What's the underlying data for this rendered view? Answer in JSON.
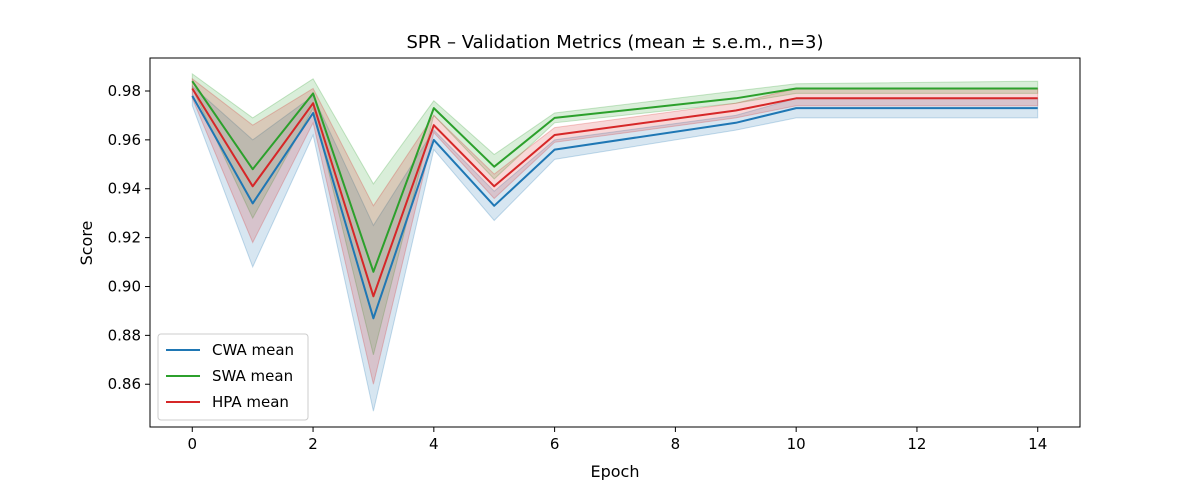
{
  "chart_data": {
    "type": "line",
    "title": "SPR – Validation Metrics (mean ± s.e.m., n=3)",
    "xlabel": "Epoch",
    "ylabel": "Score",
    "xlim": [
      -0.7,
      14.7
    ],
    "ylim": [
      0.8425,
      0.9935
    ],
    "xticks": [
      0,
      2,
      4,
      6,
      8,
      10,
      12,
      14
    ],
    "yticks": [
      0.86,
      0.88,
      0.9,
      0.92,
      0.94,
      0.96,
      0.98
    ],
    "legend_position": "lower-left",
    "grid": false,
    "x": [
      0,
      1,
      2,
      3,
      4,
      5,
      6,
      9,
      10,
      14
    ],
    "series": [
      {
        "name": "CWA mean",
        "color": "#1f77b4",
        "values": [
          0.978,
          0.934,
          0.971,
          0.887,
          0.96,
          0.933,
          0.956,
          0.967,
          0.973,
          0.973
        ],
        "lower": [
          0.974,
          0.908,
          0.962,
          0.849,
          0.956,
          0.927,
          0.952,
          0.964,
          0.969,
          0.969
        ],
        "upper": [
          0.982,
          0.96,
          0.978,
          0.925,
          0.964,
          0.939,
          0.96,
          0.97,
          0.977,
          0.977
        ]
      },
      {
        "name": "SWA mean",
        "color": "#2ca02c",
        "values": [
          0.984,
          0.948,
          0.979,
          0.906,
          0.973,
          0.949,
          0.969,
          0.977,
          0.981,
          0.981
        ],
        "lower": [
          0.981,
          0.928,
          0.973,
          0.872,
          0.97,
          0.944,
          0.967,
          0.975,
          0.979,
          0.979
        ],
        "upper": [
          0.987,
          0.969,
          0.985,
          0.942,
          0.976,
          0.954,
          0.971,
          0.98,
          0.983,
          0.984
        ]
      },
      {
        "name": "HPA mean",
        "color": "#d62728",
        "values": [
          0.981,
          0.941,
          0.975,
          0.896,
          0.966,
          0.941,
          0.962,
          0.972,
          0.977,
          0.977
        ],
        "lower": [
          0.977,
          0.918,
          0.967,
          0.86,
          0.963,
          0.936,
          0.959,
          0.969,
          0.974,
          0.974
        ],
        "upper": [
          0.985,
          0.966,
          0.981,
          0.933,
          0.97,
          0.946,
          0.965,
          0.975,
          0.981,
          0.981
        ]
      }
    ]
  }
}
